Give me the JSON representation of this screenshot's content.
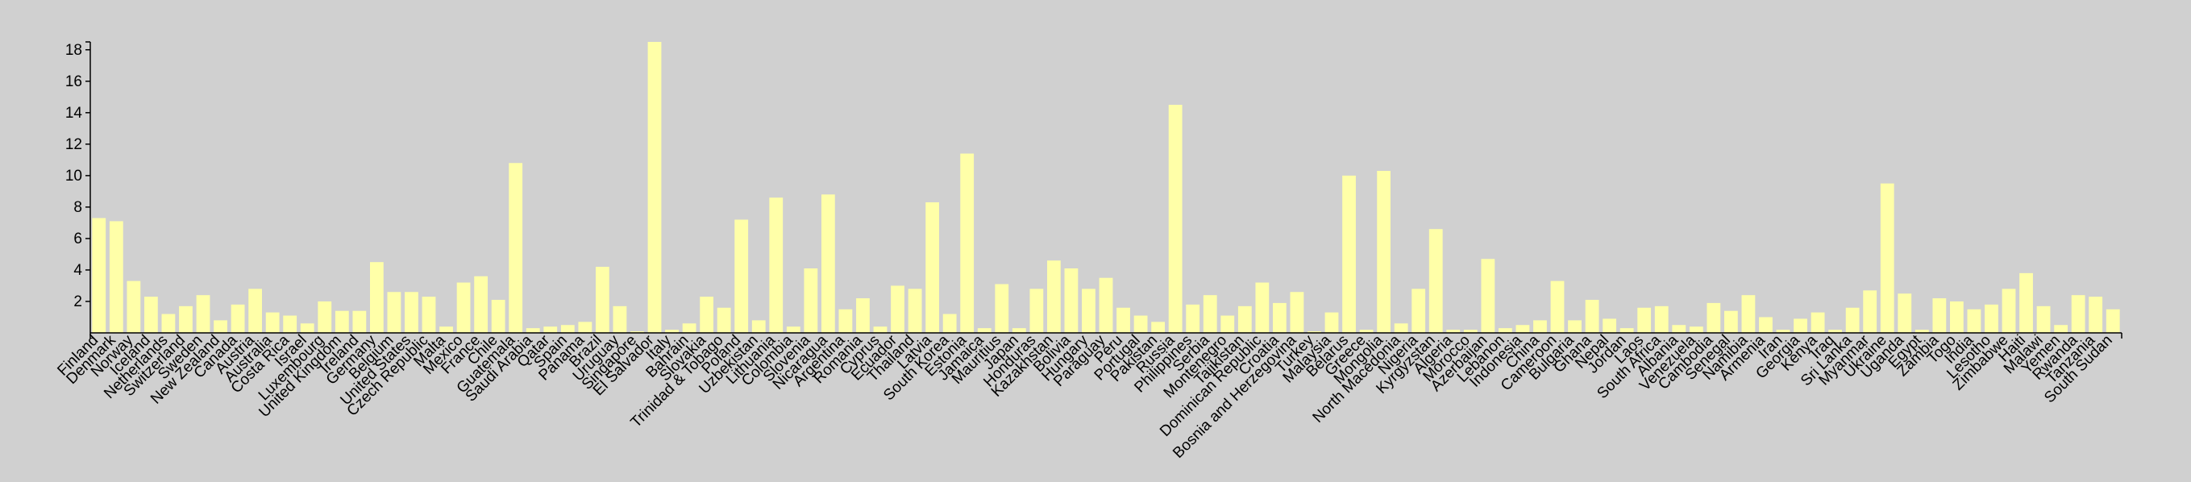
{
  "chart_data": {
    "type": "bar",
    "title": "",
    "xlabel": "",
    "ylabel": "",
    "ylim": [
      0,
      18.5
    ],
    "yticks": [
      2,
      4,
      6,
      8,
      10,
      12,
      14,
      16,
      18
    ],
    "grid": false,
    "legend": "none",
    "colors": {
      "bar": "#ffffa8",
      "background": "#d0d0d0",
      "axis": "#000000",
      "text": "#000000"
    },
    "categories": [
      "Finland",
      "Denmark",
      "Norway",
      "Iceland",
      "Netherlands",
      "Switzerland",
      "Sweden",
      "New Zealand",
      "Canada",
      "Austria",
      "Australia",
      "Costa Rica",
      "Israel",
      "Luxembourg",
      "United Kingdom",
      "Ireland",
      "Germany",
      "Belgium",
      "United States",
      "Czech Republic",
      "Malta",
      "Mexico",
      "France",
      "Chile",
      "Guatemala",
      "Saudi Arabia",
      "Qatar",
      "Spain",
      "Panama",
      "Brazil",
      "Uruguay",
      "Singapore",
      "El Salvador",
      "Italy",
      "Bahrain",
      "Slovakia",
      "Trinidad & Tobago",
      "Poland",
      "Uzbekistan",
      "Lithuania",
      "Colombia",
      "Slovenia",
      "Nicaragua",
      "Argentina",
      "Romania",
      "Cyprus",
      "Ecuador",
      "Thailand",
      "Latvia",
      "South Korea",
      "Estonia",
      "Jamaica",
      "Mauritius",
      "Japan",
      "Honduras",
      "Kazakhstan",
      "Bolivia",
      "Hungary",
      "Paraguay",
      "Peru",
      "Portugal",
      "Pakistan",
      "Russia",
      "Philippines",
      "Serbia",
      "Montenegro",
      "Tajikistan",
      "Dominican Republic",
      "Croatia",
      "Bosnia and Herzegovina",
      "Turkey",
      "Malaysia",
      "Belarus",
      "Greece",
      "Mongolia",
      "North Macedonia",
      "Nigeria",
      "Kyrgyzstan",
      "Algeria",
      "Morocco",
      "Azerbaijan",
      "Lebanon",
      "Indonesia",
      "China",
      "Cameroon",
      "Bulgaria",
      "Ghana",
      "Nepal",
      "Jordan",
      "Laos",
      "South Africa",
      "Albania",
      "Venezuela",
      "Cambodia",
      "Senegal",
      "Namibia",
      "Armenia",
      "Iran",
      "Georgia",
      "Kenya",
      "Iraq",
      "Sri Lanka",
      "Myanmar",
      "Ukraine",
      "Uganda",
      "Egypt",
      "Zambia",
      "Togo",
      "India",
      "Lesotho",
      "Zimbabwe",
      "Haiti",
      "Malawi",
      "Yemen",
      "Rwanda",
      "Tanzania",
      "South Sudan"
    ],
    "values": [
      7.3,
      7.1,
      3.3,
      2.3,
      1.2,
      1.7,
      2.4,
      0.8,
      1.8,
      2.8,
      1.3,
      1.1,
      0.6,
      2.0,
      1.4,
      1.4,
      4.5,
      2.6,
      2.6,
      2.3,
      0.4,
      3.2,
      3.6,
      2.1,
      10.8,
      0.3,
      0.4,
      0.5,
      0.7,
      4.2,
      1.7,
      0.1,
      18.5,
      0.2,
      0.6,
      2.3,
      1.6,
      7.2,
      0.8,
      8.6,
      0.4,
      4.1,
      8.8,
      1.5,
      2.2,
      0.4,
      3.0,
      2.8,
      8.3,
      1.2,
      11.4,
      0.3,
      3.1,
      0.3,
      2.8,
      4.6,
      4.1,
      2.8,
      3.5,
      1.6,
      1.1,
      0.7,
      14.5,
      1.8,
      2.4,
      1.1,
      1.7,
      3.2,
      1.9,
      2.6,
      0.1,
      1.3,
      10.0,
      0.2,
      10.3,
      0.6,
      2.8,
      6.6,
      0.2,
      0.2,
      4.7,
      0.3,
      0.5,
      0.8,
      3.3,
      0.8,
      2.1,
      0.9,
      0.3,
      1.6,
      1.7,
      0.5,
      0.4,
      1.9,
      1.4,
      2.4,
      1.0,
      0.2,
      0.9,
      1.3,
      0.2,
      1.6,
      2.7,
      9.5,
      2.5,
      0.2,
      2.2,
      2.0,
      1.5,
      1.8,
      2.8,
      3.8,
      1.7,
      0.5,
      2.4,
      2.3,
      1.5
    ]
  }
}
